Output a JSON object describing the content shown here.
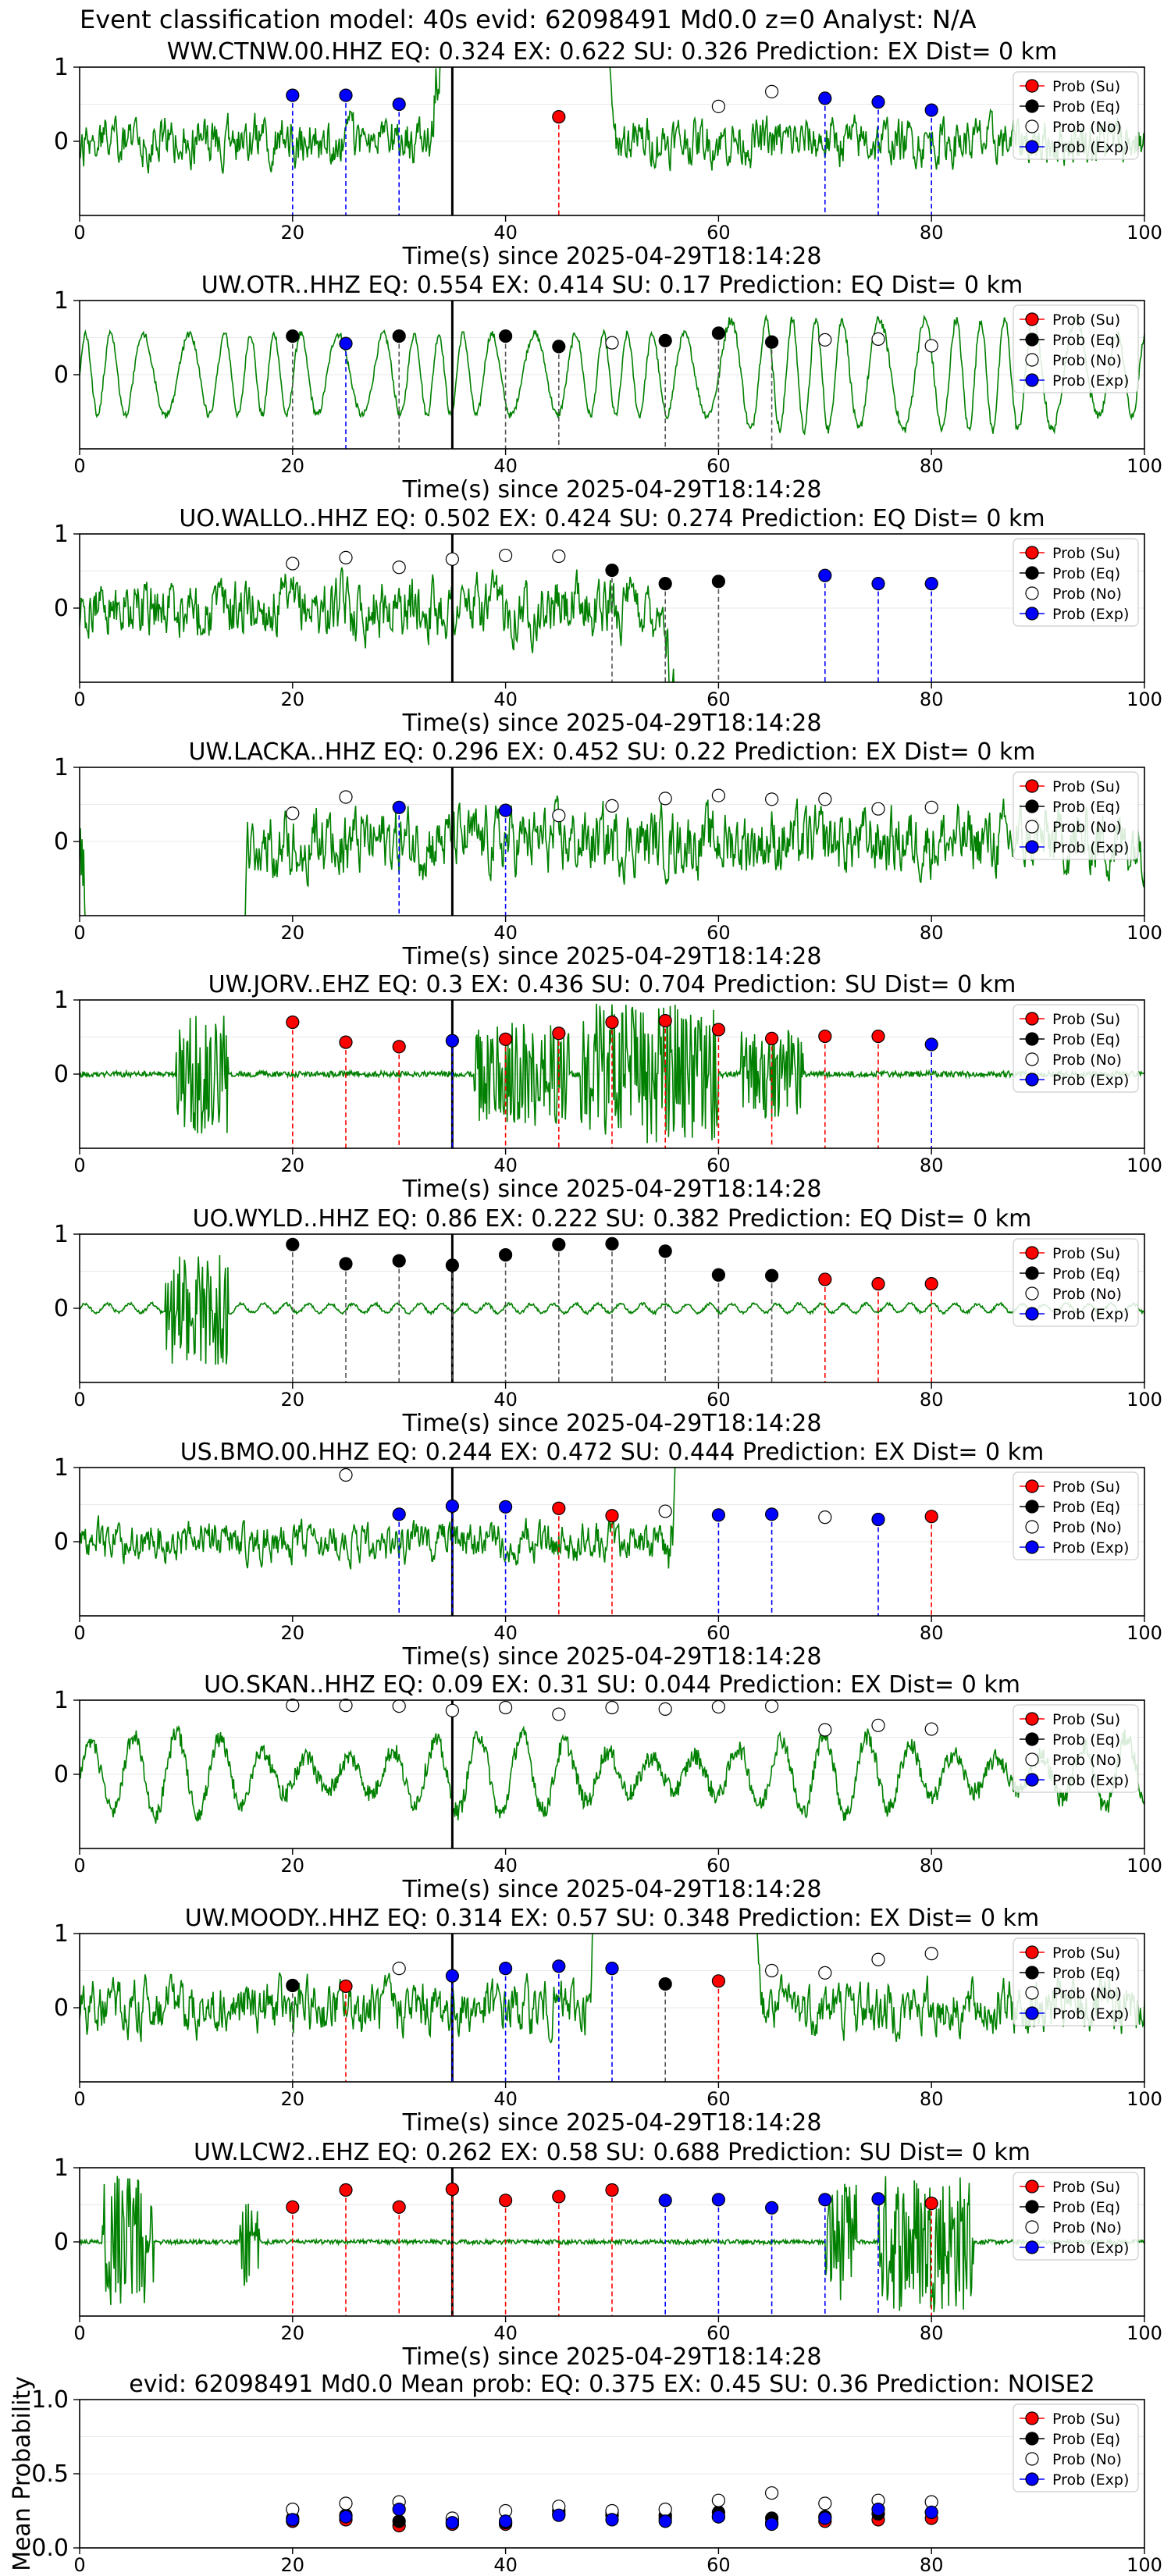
{
  "figure_title": "Event classification model: 40s evid: 62098491 Md0.0 z=0 Analyst: N/A",
  "legend_labels": [
    "Prob (Su)",
    "Prob (Eq)",
    "Prob (No)",
    "Prob (Exp)"
  ],
  "colors": {
    "su": "#ff0000",
    "eq": "#000000",
    "no": "#ffffff",
    "exp": "#0000ff",
    "wave": "#008000",
    "axis": "#000000"
  },
  "chart_data": [
    {
      "type": "line",
      "title": "WW.CTNW.00.HHZ   EQ: 0.324  EX: 0.622  SU: 0.326   Prediction: EX    Dist= 0 km",
      "xlabel": "Time(s) since 2025-04-29T18:14:28",
      "xlim": [
        0,
        100
      ],
      "ylim": [
        -1,
        1
      ],
      "xticks": [
        "0",
        "20",
        "40",
        "60",
        "80",
        "100"
      ],
      "yticks": [
        "1",
        "0"
      ],
      "origin_line_x": 35,
      "waveform": {
        "style": "noise",
        "amplitude": 0.35,
        "burst_start": 33,
        "burst_end": 46,
        "seed": 11
      },
      "points": [
        {
          "x": 20,
          "y": 0.62,
          "class": "exp"
        },
        {
          "x": 25,
          "y": 0.62,
          "class": "exp"
        },
        {
          "x": 30,
          "y": 0.5,
          "class": "exp"
        },
        {
          "x": 45,
          "y": 0.33,
          "class": "su"
        },
        {
          "x": 60,
          "y": 0.47,
          "class": "no"
        },
        {
          "x": 65,
          "y": 0.67,
          "class": "no"
        },
        {
          "x": 70,
          "y": 0.58,
          "class": "exp"
        },
        {
          "x": 75,
          "y": 0.53,
          "class": "exp"
        },
        {
          "x": 80,
          "y": 0.42,
          "class": "exp"
        }
      ]
    },
    {
      "type": "line",
      "title": "UW.OTR..HHZ   EQ: 0.554  EX: 0.414  SU: 0.17   Prediction: EQ    Dist= 0 km",
      "xlabel": "Time(s) since 2025-04-29T18:14:28",
      "xlim": [
        0,
        100
      ],
      "ylim": [
        -1,
        1
      ],
      "xticks": [
        "0",
        "20",
        "40",
        "60",
        "80",
        "100"
      ],
      "yticks": [
        "1",
        "0"
      ],
      "origin_line_x": 35,
      "waveform": {
        "style": "wave",
        "amplitude": 0.55,
        "burst_start": 60,
        "burst_end": 95,
        "seed": 23
      },
      "points": [
        {
          "x": 20,
          "y": 0.52,
          "class": "eq"
        },
        {
          "x": 25,
          "y": 0.42,
          "class": "exp"
        },
        {
          "x": 30,
          "y": 0.52,
          "class": "eq"
        },
        {
          "x": 40,
          "y": 0.52,
          "class": "eq"
        },
        {
          "x": 45,
          "y": 0.38,
          "class": "eq"
        },
        {
          "x": 50,
          "y": 0.43,
          "class": "no"
        },
        {
          "x": 55,
          "y": 0.46,
          "class": "eq"
        },
        {
          "x": 60,
          "y": 0.56,
          "class": "eq"
        },
        {
          "x": 65,
          "y": 0.44,
          "class": "eq"
        },
        {
          "x": 70,
          "y": 0.47,
          "class": "no"
        },
        {
          "x": 75,
          "y": 0.48,
          "class": "no"
        },
        {
          "x": 80,
          "y": 0.39,
          "class": "no"
        }
      ]
    },
    {
      "type": "line",
      "title": "UO.WALLO..HHZ   EQ: 0.502  EX: 0.424  SU: 0.274   Prediction: EQ    Dist= 0 km",
      "xlabel": "Time(s) since 2025-04-29T18:14:28",
      "xlim": [
        0,
        100
      ],
      "ylim": [
        -1,
        1
      ],
      "xticks": [
        "0",
        "20",
        "40",
        "60",
        "80",
        "100"
      ],
      "yticks": [
        "1",
        "0"
      ],
      "origin_line_x": 35,
      "waveform": {
        "style": "noise",
        "amplitude": 0.45,
        "burst_start": 55,
        "burst_end": 100,
        "seed": 37
      },
      "points": [
        {
          "x": 20,
          "y": 0.6,
          "class": "no"
        },
        {
          "x": 25,
          "y": 0.68,
          "class": "no"
        },
        {
          "x": 30,
          "y": 0.55,
          "class": "no"
        },
        {
          "x": 35,
          "y": 0.66,
          "class": "no"
        },
        {
          "x": 40,
          "y": 0.71,
          "class": "no"
        },
        {
          "x": 45,
          "y": 0.7,
          "class": "no"
        },
        {
          "x": 50,
          "y": 0.51,
          "class": "eq"
        },
        {
          "x": 55,
          "y": 0.33,
          "class": "eq"
        },
        {
          "x": 60,
          "y": 0.36,
          "class": "eq"
        },
        {
          "x": 70,
          "y": 0.44,
          "class": "exp"
        },
        {
          "x": 75,
          "y": 0.33,
          "class": "exp"
        },
        {
          "x": 80,
          "y": 0.33,
          "class": "exp"
        }
      ]
    },
    {
      "type": "line",
      "title": "UW.LACKA..HHZ   EQ: 0.296  EX: 0.452  SU: 0.22   Prediction: EX    Dist= 0 km",
      "xlabel": "Time(s) since 2025-04-29T18:14:28",
      "xlim": [
        0,
        100
      ],
      "ylim": [
        -1,
        1
      ],
      "xticks": [
        "0",
        "20",
        "40",
        "60",
        "80",
        "100"
      ],
      "yticks": [
        "1",
        "0"
      ],
      "origin_line_x": 35,
      "waveform": {
        "style": "noise",
        "amplitude": 0.5,
        "burst_start": 0,
        "burst_end": 12,
        "seed": 41
      },
      "points": [
        {
          "x": 20,
          "y": 0.38,
          "class": "no"
        },
        {
          "x": 25,
          "y": 0.6,
          "class": "no"
        },
        {
          "x": 30,
          "y": 0.46,
          "class": "exp"
        },
        {
          "x": 40,
          "y": 0.42,
          "class": "exp"
        },
        {
          "x": 45,
          "y": 0.35,
          "class": "no"
        },
        {
          "x": 50,
          "y": 0.48,
          "class": "no"
        },
        {
          "x": 55,
          "y": 0.58,
          "class": "no"
        },
        {
          "x": 60,
          "y": 0.62,
          "class": "no"
        },
        {
          "x": 65,
          "y": 0.57,
          "class": "no"
        },
        {
          "x": 70,
          "y": 0.57,
          "class": "no"
        },
        {
          "x": 75,
          "y": 0.44,
          "class": "no"
        },
        {
          "x": 80,
          "y": 0.46,
          "class": "no"
        }
      ]
    },
    {
      "type": "line",
      "title": "UW.JORV..EHZ   EQ: 0.3  EX: 0.436  SU: 0.704   Prediction: SU    Dist= 0 km",
      "xlabel": "Time(s) since 2025-04-29T18:14:28",
      "xlim": [
        0,
        100
      ],
      "ylim": [
        -1,
        1
      ],
      "xticks": [
        "0",
        "20",
        "40",
        "60",
        "80",
        "100"
      ],
      "yticks": [
        "1",
        "0"
      ],
      "origin_line_x": 35,
      "waveform": {
        "style": "bursts",
        "amplitude": 0.08,
        "burst_start": 50,
        "burst_end": 60,
        "seed": 53
      },
      "points": [
        {
          "x": 20,
          "y": 0.7,
          "class": "su"
        },
        {
          "x": 25,
          "y": 0.43,
          "class": "su"
        },
        {
          "x": 30,
          "y": 0.37,
          "class": "su"
        },
        {
          "x": 35,
          "y": 0.45,
          "class": "exp"
        },
        {
          "x": 40,
          "y": 0.47,
          "class": "su"
        },
        {
          "x": 45,
          "y": 0.55,
          "class": "su"
        },
        {
          "x": 50,
          "y": 0.7,
          "class": "su"
        },
        {
          "x": 55,
          "y": 0.72,
          "class": "su"
        },
        {
          "x": 60,
          "y": 0.6,
          "class": "su"
        },
        {
          "x": 65,
          "y": 0.48,
          "class": "su"
        },
        {
          "x": 70,
          "y": 0.51,
          "class": "su"
        },
        {
          "x": 75,
          "y": 0.51,
          "class": "su"
        },
        {
          "x": 80,
          "y": 0.4,
          "class": "exp"
        }
      ]
    },
    {
      "type": "line",
      "title": "UO.WYLD..HHZ   EQ: 0.86  EX: 0.222  SU: 0.382   Prediction: EQ    Dist= 0 km",
      "xlabel": "Time(s) since 2025-04-29T18:14:28",
      "xlim": [
        0,
        100
      ],
      "ylim": [
        -1,
        1
      ],
      "xticks": [
        "0",
        "20",
        "40",
        "60",
        "80",
        "100"
      ],
      "yticks": [
        "1",
        "0"
      ],
      "origin_line_x": 35,
      "waveform": {
        "style": "spikes",
        "amplitude": 0.06,
        "burst_start": 8,
        "burst_end": 14,
        "seed": 67
      },
      "points": [
        {
          "x": 20,
          "y": 0.86,
          "class": "eq"
        },
        {
          "x": 25,
          "y": 0.6,
          "class": "eq"
        },
        {
          "x": 30,
          "y": 0.64,
          "class": "eq"
        },
        {
          "x": 35,
          "y": 0.58,
          "class": "eq"
        },
        {
          "x": 40,
          "y": 0.72,
          "class": "eq"
        },
        {
          "x": 45,
          "y": 0.86,
          "class": "eq"
        },
        {
          "x": 50,
          "y": 0.87,
          "class": "eq"
        },
        {
          "x": 55,
          "y": 0.77,
          "class": "eq"
        },
        {
          "x": 60,
          "y": 0.45,
          "class": "eq"
        },
        {
          "x": 65,
          "y": 0.44,
          "class": "eq"
        },
        {
          "x": 70,
          "y": 0.39,
          "class": "su"
        },
        {
          "x": 75,
          "y": 0.33,
          "class": "su"
        },
        {
          "x": 80,
          "y": 0.33,
          "class": "su"
        }
      ]
    },
    {
      "type": "line",
      "title": "US.BMO.00.HHZ   EQ: 0.244  EX: 0.472  SU: 0.444   Prediction: EX    Dist= 0 km",
      "xlabel": "Time(s) since 2025-04-29T18:14:28",
      "xlim": [
        0,
        100
      ],
      "ylim": [
        -1,
        1
      ],
      "xticks": [
        "0",
        "20",
        "40",
        "60",
        "80",
        "100"
      ],
      "yticks": [
        "1",
        "0"
      ],
      "origin_line_x": 35,
      "waveform": {
        "style": "noise",
        "amplitude": 0.3,
        "burst_start": 55,
        "burst_end": 100,
        "seed": 79
      },
      "points": [
        {
          "x": 25,
          "y": 0.9,
          "class": "no"
        },
        {
          "x": 30,
          "y": 0.37,
          "class": "exp"
        },
        {
          "x": 35,
          "y": 0.48,
          "class": "exp"
        },
        {
          "x": 40,
          "y": 0.47,
          "class": "exp"
        },
        {
          "x": 45,
          "y": 0.45,
          "class": "su"
        },
        {
          "x": 50,
          "y": 0.35,
          "class": "su"
        },
        {
          "x": 55,
          "y": 0.41,
          "class": "no"
        },
        {
          "x": 60,
          "y": 0.36,
          "class": "exp"
        },
        {
          "x": 65,
          "y": 0.37,
          "class": "exp"
        },
        {
          "x": 70,
          "y": 0.33,
          "class": "no"
        },
        {
          "x": 75,
          "y": 0.3,
          "class": "exp"
        },
        {
          "x": 80,
          "y": 0.34,
          "class": "su"
        }
      ]
    },
    {
      "type": "line",
      "title": "UO.SKAN..HHZ   EQ: 0.09  EX: 0.31  SU: 0.044   Prediction: EX    Dist= 0 km",
      "xlabel": "Time(s) since 2025-04-29T18:14:28",
      "xlim": [
        0,
        100
      ],
      "ylim": [
        -1,
        1
      ],
      "xticks": [
        "0",
        "20",
        "40",
        "60",
        "80",
        "100"
      ],
      "yticks": [
        "1",
        "0"
      ],
      "origin_line_x": 35,
      "waveform": {
        "style": "swell",
        "amplitude": 0.55,
        "burst_start": 0,
        "burst_end": 0,
        "seed": 83
      },
      "points": [
        {
          "x": 20,
          "y": 0.93,
          "class": "no"
        },
        {
          "x": 25,
          "y": 0.93,
          "class": "no"
        },
        {
          "x": 30,
          "y": 0.92,
          "class": "no"
        },
        {
          "x": 35,
          "y": 0.86,
          "class": "no"
        },
        {
          "x": 40,
          "y": 0.9,
          "class": "no"
        },
        {
          "x": 45,
          "y": 0.81,
          "class": "no"
        },
        {
          "x": 50,
          "y": 0.9,
          "class": "no"
        },
        {
          "x": 55,
          "y": 0.88,
          "class": "no"
        },
        {
          "x": 60,
          "y": 0.91,
          "class": "no"
        },
        {
          "x": 65,
          "y": 0.92,
          "class": "no"
        },
        {
          "x": 70,
          "y": 0.6,
          "class": "no"
        },
        {
          "x": 75,
          "y": 0.66,
          "class": "no"
        },
        {
          "x": 80,
          "y": 0.61,
          "class": "no"
        }
      ]
    },
    {
      "type": "line",
      "title": "UW.MOODY..HHZ   EQ: 0.314  EX: 0.57  SU: 0.348   Prediction: EX    Dist= 0 km",
      "xlabel": "Time(s) since 2025-04-29T18:14:28",
      "xlim": [
        0,
        100
      ],
      "ylim": [
        -1,
        1
      ],
      "xticks": [
        "0",
        "20",
        "40",
        "60",
        "80",
        "100"
      ],
      "yticks": [
        "1",
        "0"
      ],
      "origin_line_x": 35,
      "waveform": {
        "style": "noise",
        "amplitude": 0.4,
        "burst_start": 48,
        "burst_end": 60,
        "seed": 97
      },
      "points": [
        {
          "x": 20,
          "y": 0.3,
          "class": "eq"
        },
        {
          "x": 25,
          "y": 0.29,
          "class": "su"
        },
        {
          "x": 30,
          "y": 0.53,
          "class": "no"
        },
        {
          "x": 35,
          "y": 0.43,
          "class": "exp"
        },
        {
          "x": 40,
          "y": 0.53,
          "class": "exp"
        },
        {
          "x": 45,
          "y": 0.56,
          "class": "exp"
        },
        {
          "x": 50,
          "y": 0.53,
          "class": "exp"
        },
        {
          "x": 55,
          "y": 0.32,
          "class": "eq"
        },
        {
          "x": 60,
          "y": 0.36,
          "class": "su"
        },
        {
          "x": 65,
          "y": 0.5,
          "class": "no"
        },
        {
          "x": 70,
          "y": 0.47,
          "class": "no"
        },
        {
          "x": 75,
          "y": 0.65,
          "class": "no"
        },
        {
          "x": 80,
          "y": 0.73,
          "class": "no"
        }
      ]
    },
    {
      "type": "line",
      "title": "UW.LCW2..EHZ   EQ: 0.262  EX: 0.58  SU: 0.688   Prediction: SU    Dist= 0 km",
      "xlabel": "Time(s) since 2025-04-29T18:14:28",
      "xlim": [
        0,
        100
      ],
      "ylim": [
        -1,
        1
      ],
      "xticks": [
        "0",
        "20",
        "40",
        "60",
        "80",
        "100"
      ],
      "yticks": [
        "1",
        "0"
      ],
      "origin_line_x": 35,
      "waveform": {
        "style": "bursts",
        "amplitude": 0.06,
        "burst_start": 75,
        "burst_end": 85,
        "seed": 101
      },
      "points": [
        {
          "x": 20,
          "y": 0.47,
          "class": "su"
        },
        {
          "x": 25,
          "y": 0.7,
          "class": "su"
        },
        {
          "x": 30,
          "y": 0.47,
          "class": "su"
        },
        {
          "x": 35,
          "y": 0.71,
          "class": "su"
        },
        {
          "x": 40,
          "y": 0.56,
          "class": "su"
        },
        {
          "x": 45,
          "y": 0.61,
          "class": "su"
        },
        {
          "x": 50,
          "y": 0.7,
          "class": "su"
        },
        {
          "x": 55,
          "y": 0.56,
          "class": "exp"
        },
        {
          "x": 60,
          "y": 0.57,
          "class": "exp"
        },
        {
          "x": 65,
          "y": 0.46,
          "class": "exp"
        },
        {
          "x": 70,
          "y": 0.57,
          "class": "exp"
        },
        {
          "x": 75,
          "y": 0.58,
          "class": "exp"
        },
        {
          "x": 80,
          "y": 0.52,
          "class": "su"
        }
      ]
    },
    {
      "type": "scatter",
      "title": "evid: 62098491  Md0.0   Mean prob:   EQ: 0.375  EX: 0.45  SU: 0.36   Prediction: NOISE2",
      "xlabel": "",
      "ylabel": "Mean Probability",
      "xlim": [
        0,
        100
      ],
      "ylim": [
        0,
        1
      ],
      "xticks": [
        "0",
        "20",
        "40",
        "60",
        "80",
        "100"
      ],
      "yticks": [
        "1.0",
        "0.5",
        "0.0"
      ],
      "x": [
        20,
        25,
        30,
        35,
        40,
        45,
        50,
        55,
        60,
        65,
        70,
        75,
        80
      ],
      "series": [
        {
          "name": "Prob (Su)",
          "class": "su",
          "values": [
            0.18,
            0.19,
            0.15,
            0.16,
            0.16,
            0.23,
            0.22,
            0.2,
            0.21,
            0.17,
            0.18,
            0.19,
            0.2
          ]
        },
        {
          "name": "Prob (Eq)",
          "class": "eq",
          "values": [
            0.2,
            0.22,
            0.18,
            0.18,
            0.17,
            0.25,
            0.24,
            0.22,
            0.24,
            0.2,
            0.21,
            0.23,
            0.24
          ]
        },
        {
          "name": "Prob (No)",
          "class": "no",
          "values": [
            0.26,
            0.3,
            0.31,
            0.2,
            0.25,
            0.28,
            0.25,
            0.26,
            0.32,
            0.37,
            0.3,
            0.32,
            0.31
          ]
        },
        {
          "name": "Prob (Exp)",
          "class": "exp",
          "values": [
            0.19,
            0.21,
            0.26,
            0.17,
            0.18,
            0.22,
            0.19,
            0.18,
            0.21,
            0.16,
            0.2,
            0.26,
            0.24
          ]
        }
      ]
    }
  ]
}
